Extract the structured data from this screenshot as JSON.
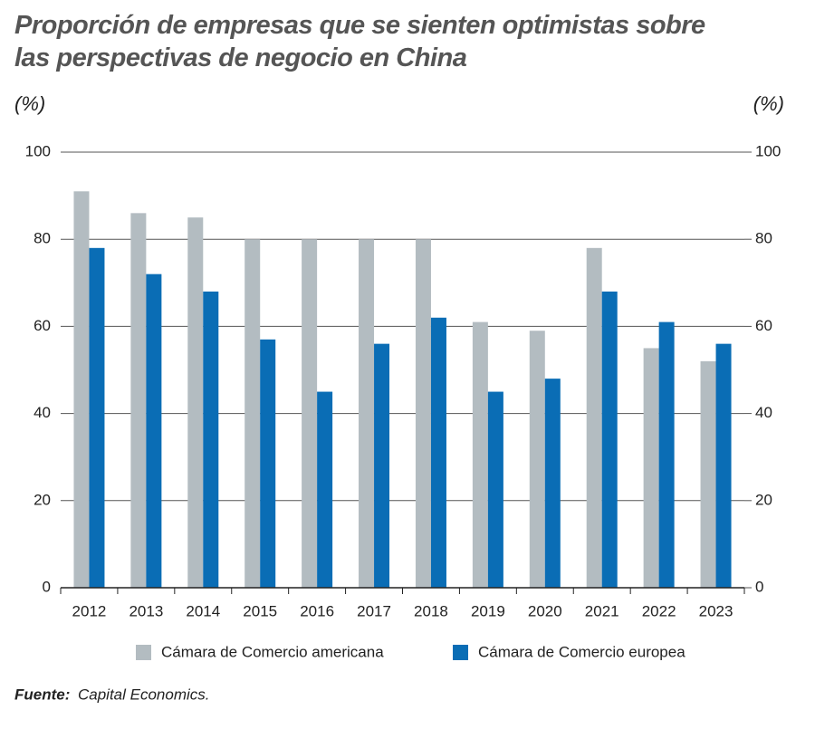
{
  "chart_data": {
    "type": "bar",
    "title": "Proporción de empresas que se sienten optimistas sobre las perspectivas de negocio en China",
    "ylabel": "(%)",
    "y2label": "(%)",
    "categories": [
      "2012",
      "2013",
      "2014",
      "2015",
      "2016",
      "2017",
      "2018",
      "2019",
      "2020",
      "2021",
      "2022",
      "2023"
    ],
    "series": [
      {
        "name": "Cámara de Comercio americana",
        "color": "#b3bcc1",
        "values": [
          91,
          86,
          85,
          80,
          80,
          80,
          80,
          61,
          59,
          78,
          55,
          52
        ]
      },
      {
        "name": "Cámara de Comercio europea",
        "color": "#0a6db5",
        "values": [
          78,
          72,
          68,
          57,
          45,
          56,
          62,
          45,
          48,
          68,
          61,
          56
        ]
      }
    ],
    "ylim": [
      0,
      100
    ],
    "yticks": [
      0,
      20,
      40,
      60,
      80,
      100
    ],
    "y2lim": [
      0,
      100
    ],
    "y2ticks": [
      0,
      20,
      40,
      60,
      80,
      100
    ],
    "grid": true,
    "source_label": "Fuente:",
    "source": "Capital Economics."
  }
}
